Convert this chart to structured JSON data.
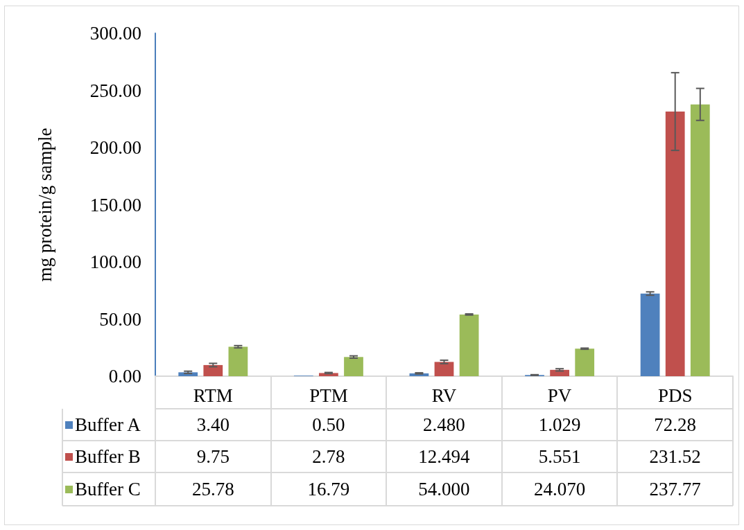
{
  "chart_data": {
    "type": "bar",
    "ylabel": "mg protein/g sample",
    "categories": [
      "RTM",
      "PTM",
      "RV",
      "PV",
      "PDS"
    ],
    "ylim": [
      0,
      300
    ],
    "yticks": [
      {
        "value": 0,
        "label": "0.00"
      },
      {
        "value": 50,
        "label": "50.00"
      },
      {
        "value": 100,
        "label": "100.00"
      },
      {
        "value": 150,
        "label": "150.00"
      },
      {
        "value": 200,
        "label": "200.00"
      },
      {
        "value": 250,
        "label": "250.00"
      },
      {
        "value": 300,
        "label": "300.00"
      }
    ],
    "grid": false,
    "legend": "bottom left",
    "series": [
      {
        "name": "Buffer A",
        "color": "#4f81bd",
        "values": [
          3.4,
          0.5,
          2.48,
          1.029,
          72.28
        ],
        "value_labels": [
          "3.40",
          "0.50",
          "2.480",
          "1.029",
          "72.28"
        ],
        "errors": [
          1,
          null,
          0.5,
          0.3,
          1.5
        ]
      },
      {
        "name": "Buffer B",
        "color": "#c0504d",
        "values": [
          9.75,
          2.78,
          12.494,
          5.551,
          231.52
        ],
        "value_labels": [
          "9.75",
          "2.78",
          "12.494",
          "5.551",
          "231.52"
        ],
        "errors": [
          1.5,
          0.5,
          1.5,
          1,
          34
        ]
      },
      {
        "name": "Buffer C",
        "color": "#9bbb59",
        "values": [
          25.78,
          16.79,
          54.0,
          24.07,
          237.77
        ],
        "value_labels": [
          "25.78",
          "16.79",
          "54.000",
          "24.070",
          "237.77"
        ],
        "errors": [
          1,
          1,
          0.5,
          0.5,
          14
        ]
      }
    ]
  }
}
